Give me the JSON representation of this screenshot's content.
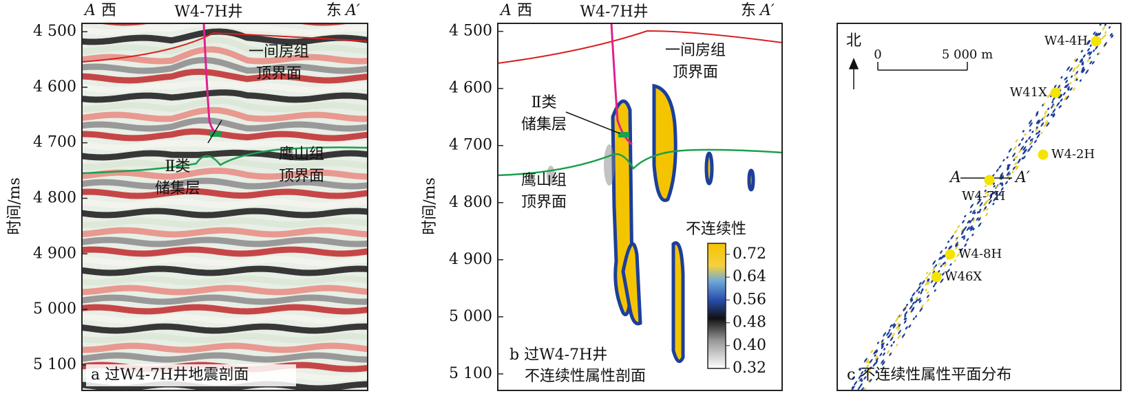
{
  "panels": {
    "a": {
      "header": {
        "left_letter": "A",
        "left_word": "西",
        "well": "W4-7H井",
        "right_word": "东",
        "right_letter": "A′"
      },
      "y_axis_label": "时间/ms",
      "ylim": [
        4485,
        5146
      ],
      "yticks": [
        {
          "value": 4500,
          "label": "4 500"
        },
        {
          "value": 4600,
          "label": "4 600"
        },
        {
          "value": 4700,
          "label": "4 700"
        },
        {
          "value": 4800,
          "label": "4 800"
        },
        {
          "value": 4900,
          "label": "4 900"
        },
        {
          "value": 5000,
          "label": "5 000"
        },
        {
          "value": 5100,
          "label": "5 100"
        }
      ],
      "annotations": {
        "top_horizon": [
          "一间房组",
          "顶界面"
        ],
        "bottom_horizon": [
          "鹰山组",
          "顶界面"
        ],
        "reservoir": [
          "Ⅱ类",
          "储集层"
        ]
      },
      "caption": "a 过W4-7H井地震剖面"
    },
    "b": {
      "header": {
        "left_letter": "A",
        "left_word": "西",
        "well": "W4-7H井",
        "right_word": "东",
        "right_letter": "A′"
      },
      "y_axis_label": "时间/ms",
      "ylim": [
        4486,
        5129
      ],
      "yticks": [
        {
          "value": 4500,
          "label": "4 500"
        },
        {
          "value": 4600,
          "label": "4 600"
        },
        {
          "value": 4700,
          "label": "4 700"
        },
        {
          "value": 4800,
          "label": "4 800"
        },
        {
          "value": 4900,
          "label": "4 900"
        },
        {
          "value": 5000,
          "label": "5 000"
        },
        {
          "value": 5100,
          "label": "5 100"
        }
      ],
      "annotations": {
        "top_horizon": [
          "一间房组",
          "顶界面"
        ],
        "bottom_horizon": [
          "鹰山组",
          "顶界面"
        ],
        "reservoir": [
          "Ⅱ类",
          "储集层"
        ]
      },
      "colorbar": {
        "title": "不连续性",
        "ticks": [
          0.72,
          0.64,
          0.56,
          0.48,
          0.4,
          0.32
        ],
        "tick_labels": [
          "0.72",
          "0.64",
          "0.56",
          "0.48",
          "0.40",
          "0.32"
        ]
      },
      "caption": [
        "b 过W4-7H井",
        "不连续性属性剖面"
      ]
    },
    "c": {
      "north": "北",
      "scale": {
        "zero": "0",
        "length": "5 000 m"
      },
      "wells": [
        "W4-4H",
        "W41X",
        "W4-2H",
        "W4-7H",
        "W4-8H",
        "W46X"
      ],
      "section": {
        "left": "A",
        "right": "A′"
      },
      "caption": "c 不连续性属性平面分布"
    }
  }
}
